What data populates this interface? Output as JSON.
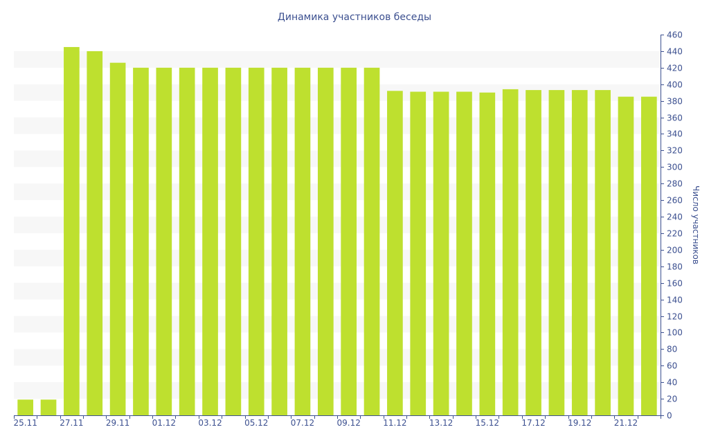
{
  "chart_data": {
    "type": "bar",
    "title": "Динамика участников беседы",
    "xlabel": "",
    "ylabel": "Число участников",
    "ylim": [
      0,
      460
    ],
    "y_ticks": [
      0,
      20,
      40,
      60,
      80,
      100,
      120,
      140,
      160,
      180,
      200,
      220,
      240,
      260,
      280,
      300,
      320,
      340,
      360,
      380,
      400,
      420,
      440,
      460
    ],
    "y_axis_position": "right",
    "grid": "alternating horizontal bands",
    "bar_color": "#bee02f",
    "band_color": "#f7f7f7",
    "text_color": "#3b4f8f",
    "axis_color": "#3b4f8f",
    "categories": [
      "25.11",
      "26.11",
      "27.11",
      "28.11",
      "29.11",
      "30.11",
      "01.12",
      "02.12",
      "03.12",
      "04.12",
      "05.12",
      "06.12",
      "07.12",
      "08.12",
      "09.12",
      "10.12",
      "11.12",
      "12.12",
      "13.12",
      "14.12",
      "15.12",
      "16.12",
      "17.12",
      "18.12",
      "19.12",
      "20.12",
      "21.12",
      "22.12"
    ],
    "x_tick_labels": [
      "25.11",
      "27.11",
      "29.11",
      "01.12",
      "03.12",
      "05.12",
      "07.12",
      "09.12",
      "11.12",
      "13.12",
      "15.12",
      "17.12",
      "19.12",
      "21.12"
    ],
    "values": [
      19,
      19,
      445,
      440,
      426,
      420,
      420,
      420,
      420,
      420,
      420,
      420,
      420,
      420,
      420,
      420,
      392,
      391,
      391,
      391,
      390,
      394,
      393,
      393,
      393,
      393,
      385,
      385
    ]
  }
}
